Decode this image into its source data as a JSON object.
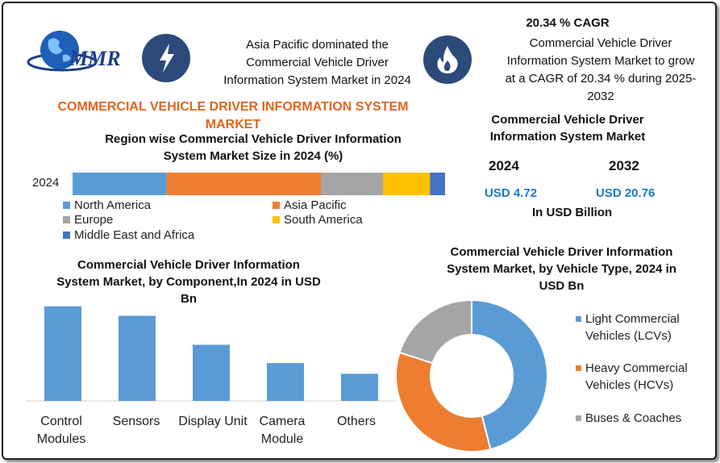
{
  "brand": {
    "logo_text": "MMR"
  },
  "header": {
    "headline_lines": [
      "Asia Pacific dominated the",
      "Commercial Vehicle Driver",
      "Information System Market in 2024"
    ],
    "cagr_title": "20.34 % CAGR",
    "cagr_lines": [
      "Commercial Vehicle Driver",
      "Information System Market to grow",
      "at a CAGR of 20.34 % during 2025-",
      "2032"
    ]
  },
  "main_title_lines": [
    "COMMERCIAL VEHICLE DRIVER INFORMATION SYSTEM",
    "MARKET"
  ],
  "market_size": {
    "title_lines": [
      "Commercial Vehicle Driver",
      "Information System Market"
    ],
    "year1": "2024",
    "year2": "2032",
    "value1": "USD 4.72",
    "value2": "USD 20.76",
    "unit": "In USD Billion"
  },
  "colors": {
    "north_america": "#5b9bd5",
    "asia_pacific": "#ed7d31",
    "europe": "#a5a5a5",
    "south_america": "#ffc000",
    "mea": "#4472c4",
    "bar": "#5b9bd5"
  },
  "icons": {
    "left": "lightning-bolt-icon",
    "right": "flame-icon",
    "logo": "globe-icon"
  },
  "chart_data": [
    {
      "type": "bar",
      "orientation": "horizontal-stacked",
      "title": "Region wise Commercial Vehicle Driver Information System Market Size in 2024 (%)",
      "title_lines": [
        "Region wise Commercial Vehicle Driver Information",
        "System Market Size in 2024 (%)"
      ],
      "categories": [
        "2024"
      ],
      "series": [
        {
          "name": "North America",
          "values": [
            25
          ],
          "color": "#5b9bd5"
        },
        {
          "name": "Asia Pacific",
          "values": [
            41
          ],
          "color": "#ed7d31"
        },
        {
          "name": "Europe",
          "values": [
            16.5
          ],
          "color": "#a5a5a5"
        },
        {
          "name": "South America",
          "values": [
            12.5
          ],
          "color": "#ffc000"
        },
        {
          "name": "Middle East and Africa",
          "values": [
            4
          ],
          "color": "#4472c4"
        }
      ],
      "legend_position": "bottom"
    },
    {
      "type": "bar",
      "title": "Commercial Vehicle Driver Information System Market, by Component,In 2024 in USD Bn",
      "title_lines": [
        "Commercial Vehicle Driver Information",
        "System Market, by Component,In 2024 in USD",
        "Bn"
      ],
      "categories": [
        "Control Modules",
        "Sensors",
        "Display Unit",
        "Camera Module",
        "Others"
      ],
      "category_lines": [
        [
          "Control",
          "Modules"
        ],
        [
          "Sensors"
        ],
        [
          "Display Unit"
        ],
        [
          "Camera",
          "Module"
        ],
        [
          "Others"
        ]
      ],
      "values": [
        1.5,
        1.35,
        0.89,
        0.6,
        0.43
      ],
      "ylim": [
        0,
        1.6
      ]
    },
    {
      "type": "pie",
      "style": "donut",
      "title": "Commercial Vehicle Driver Information System Market, by Vehicle Type, 2024 in USD Bn",
      "title_lines": [
        "Commercial Vehicle Driver Information",
        "System Market, by Vehicle Type, 2024 in",
        "USD Bn"
      ],
      "labels": [
        "Light Commercial Vehicles (LCVs)",
        "Heavy Commercial Vehicles (HCVs)",
        "Buses & Coaches"
      ],
      "label_lines": [
        [
          "Light Commercial",
          "Vehicles (LCVs)"
        ],
        [
          "Heavy Commercial",
          "Vehicles (HCVs)"
        ],
        [
          "Buses & Coaches"
        ]
      ],
      "values": [
        46,
        34,
        20
      ],
      "colors": [
        "#5b9bd5",
        "#ed7d31",
        "#a5a5a5"
      ],
      "legend_position": "right"
    }
  ]
}
